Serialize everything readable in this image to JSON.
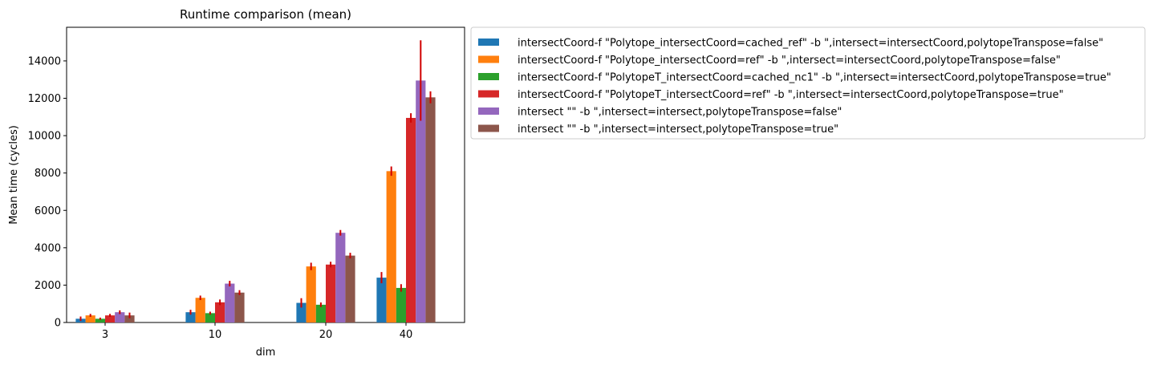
{
  "chart_data": {
    "type": "bar",
    "title": "Runtime comparison (mean)",
    "xlabel": "dim",
    "ylabel": "Mean time (cycles)",
    "categories": [
      "3",
      "10",
      "20",
      "40"
    ],
    "ylim": [
      0,
      15800
    ],
    "yticks": [
      0,
      2000,
      4000,
      6000,
      8000,
      10000,
      12000,
      14000
    ],
    "error_bar_color": "#d00000",
    "legend_position": "outside-right-top",
    "series": [
      {
        "name": "intersectCoord-f \"Polytope_intersectCoord=cached_ref\" -b \",intersect=intersectCoord,polytopeTranspose=false\"",
        "color": "#1f77b4",
        "values": [
          200,
          550,
          1050,
          2400
        ],
        "errors": [
          120,
          130,
          250,
          300
        ]
      },
      {
        "name": "intersectCoord-f \"Polytope_intersectCoord=ref\" -b \",intersect=intersectCoord,polytopeTranspose=false\"",
        "color": "#ff7f0e",
        "values": [
          380,
          1320,
          3000,
          8100
        ],
        "errors": [
          80,
          120,
          200,
          250
        ]
      },
      {
        "name": "intersectCoord-f \"PolytopeT_intersectCoord=cached_nc1\" -b \",intersect=intersectCoord,polytopeTranspose=true\"",
        "color": "#2ca02c",
        "values": [
          200,
          500,
          950,
          1850
        ],
        "errors": [
          60,
          80,
          120,
          200
        ]
      },
      {
        "name": "intersectCoord-f \"PolytopeT_intersectCoord=ref\" -b \",intersect=intersectCoord,polytopeTranspose=true\"",
        "color": "#d62728",
        "values": [
          380,
          1080,
          3100,
          10950
        ],
        "errors": [
          80,
          150,
          150,
          250
        ]
      },
      {
        "name": "intersect \"\" -b \",intersect=intersect,polytopeTranspose=false\"",
        "color": "#9467bd",
        "values": [
          550,
          2080,
          4800,
          12950
        ],
        "errors": [
          100,
          150,
          150,
          2150
        ]
      },
      {
        "name": "intersect \"\" -b \",intersect=intersect,polytopeTranspose=true\"",
        "color": "#8c564b",
        "values": [
          380,
          1600,
          3580,
          12050
        ],
        "errors": [
          150,
          130,
          150,
          320
        ]
      }
    ]
  }
}
